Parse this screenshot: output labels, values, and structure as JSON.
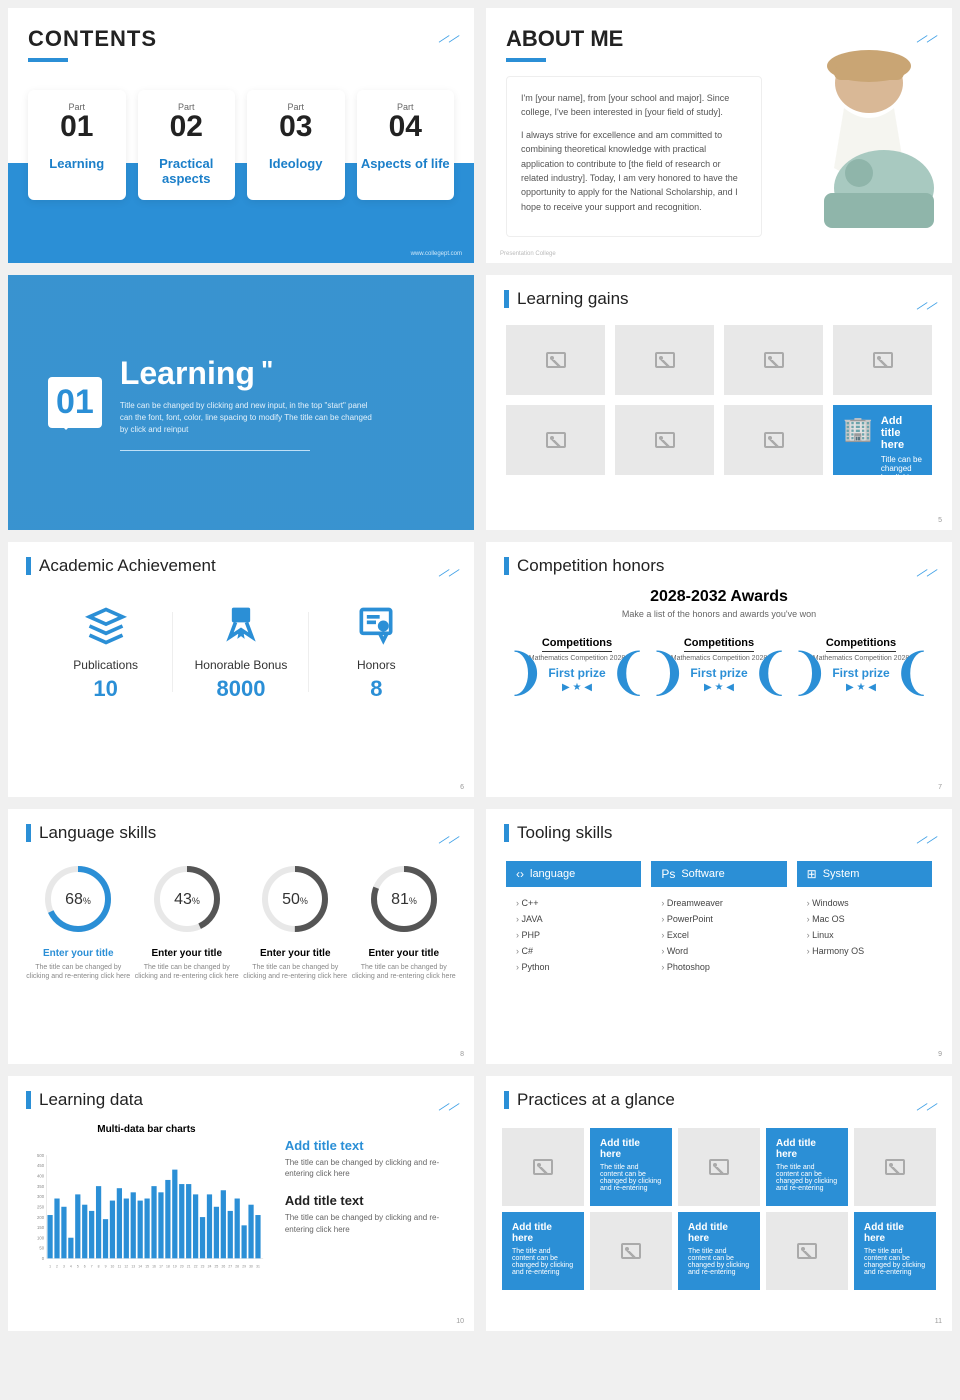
{
  "accent": "#2b8fd6",
  "slide1": {
    "title": "CONTENTS",
    "cards": [
      {
        "part": "Part",
        "num": "01",
        "label": "Learning"
      },
      {
        "part": "Part",
        "num": "02",
        "label": "Practical aspects"
      },
      {
        "part": "Part",
        "num": "03",
        "label": "Ideology"
      },
      {
        "part": "Part",
        "num": "04",
        "label": "Aspects of life"
      }
    ],
    "footer": "www.collegept.com"
  },
  "slide2": {
    "title": "ABOUT ME",
    "p1": "I'm [your name], from [your school and major]. Since college, I've been interested in [your field of study].",
    "p2": "I always strive for excellence and am committed to combining theoretical knowledge with practical application to contribute to [the field of research or related industry]. Today, I am very honored to have the opportunity to apply for the National Scholarship, and I hope to receive your support and recognition.",
    "footer": "Presentation College"
  },
  "slide3": {
    "num": "01",
    "title": "Learning",
    "desc": "Title can be changed by clicking and new input, in the top \"start\" panel can the font, font, color, line spacing to modify The title can be changed by click and reinput"
  },
  "slide4": {
    "title": "Learning gains",
    "cta_title": "Add title here",
    "cta_desc": "Title can be changed by clicking and re-entering",
    "page": "5"
  },
  "slide5": {
    "title": "Academic Achievement",
    "stats": [
      {
        "label": "Publications",
        "value": "10"
      },
      {
        "label": "Honorable Bonus",
        "value": "8000"
      },
      {
        "label": "Honors",
        "value": "8"
      }
    ],
    "page": "6"
  },
  "slide6": {
    "title": "Competition honors",
    "heading": "2028-2032 Awards",
    "sub": "Make a list of the honors and awards you've won",
    "award": {
      "title": "Competitions",
      "detail": "Mathematics Competition 2028",
      "prize": "First prize"
    },
    "page": "7"
  },
  "slide7": {
    "title": "Language skills",
    "rings": [
      {
        "pct": 68,
        "color": "#2b8fd6",
        "active": true
      },
      {
        "pct": 43,
        "color": "#555",
        "active": false
      },
      {
        "pct": 50,
        "color": "#555",
        "active": false
      },
      {
        "pct": 81,
        "color": "#555",
        "active": false
      }
    ],
    "rtitle": "Enter your title",
    "rdesc": "The title can be changed by clicking and re-entering click here",
    "page": "8"
  },
  "slide8": {
    "title": "Tooling skills",
    "cols": [
      {
        "icon": "‹›",
        "head": "language",
        "items": [
          "C++",
          "JAVA",
          "PHP",
          "C#",
          "Python"
        ]
      },
      {
        "icon": "Ps",
        "head": "Software",
        "items": [
          "Dreamweaver",
          "PowerPoint",
          "Excel",
          "Word",
          "Photoshop"
        ]
      },
      {
        "icon": "⊞",
        "head": "System",
        "items": [
          "Windows",
          "Mac OS",
          "Linux",
          "Harmony OS"
        ]
      }
    ],
    "page": "9"
  },
  "slide9": {
    "title": "Learning data",
    "chart": {
      "title": "Multi-data bar charts",
      "ymax": 500,
      "ystep": 50,
      "bar_color": "#2b8fd6",
      "values": [
        210,
        290,
        250,
        100,
        310,
        260,
        230,
        350,
        190,
        280,
        340,
        290,
        320,
        280,
        290,
        350,
        320,
        380,
        430,
        360,
        360,
        310,
        200,
        310,
        250,
        330,
        230,
        290,
        160,
        260,
        210
      ],
      "xlabels": [
        "1",
        "2",
        "3",
        "4",
        "5",
        "6",
        "7",
        "8",
        "9",
        "10",
        "11",
        "12",
        "13",
        "14",
        "15",
        "16",
        "17",
        "18",
        "19",
        "20",
        "21",
        "22",
        "23",
        "24",
        "25",
        "26",
        "27",
        "28",
        "29",
        "30",
        "31"
      ]
    },
    "t1": "Add title text",
    "d1": "The title can be changed by clicking and re-entering click here",
    "t2": "Add title text",
    "d2": "The title can be changed by clicking and re-entering click here",
    "page": "10"
  },
  "slide10": {
    "title": "Practices at a glance",
    "btitle": "Add title here",
    "bdesc": "The title and content can be changed by clicking and re-entering",
    "page": "11"
  }
}
